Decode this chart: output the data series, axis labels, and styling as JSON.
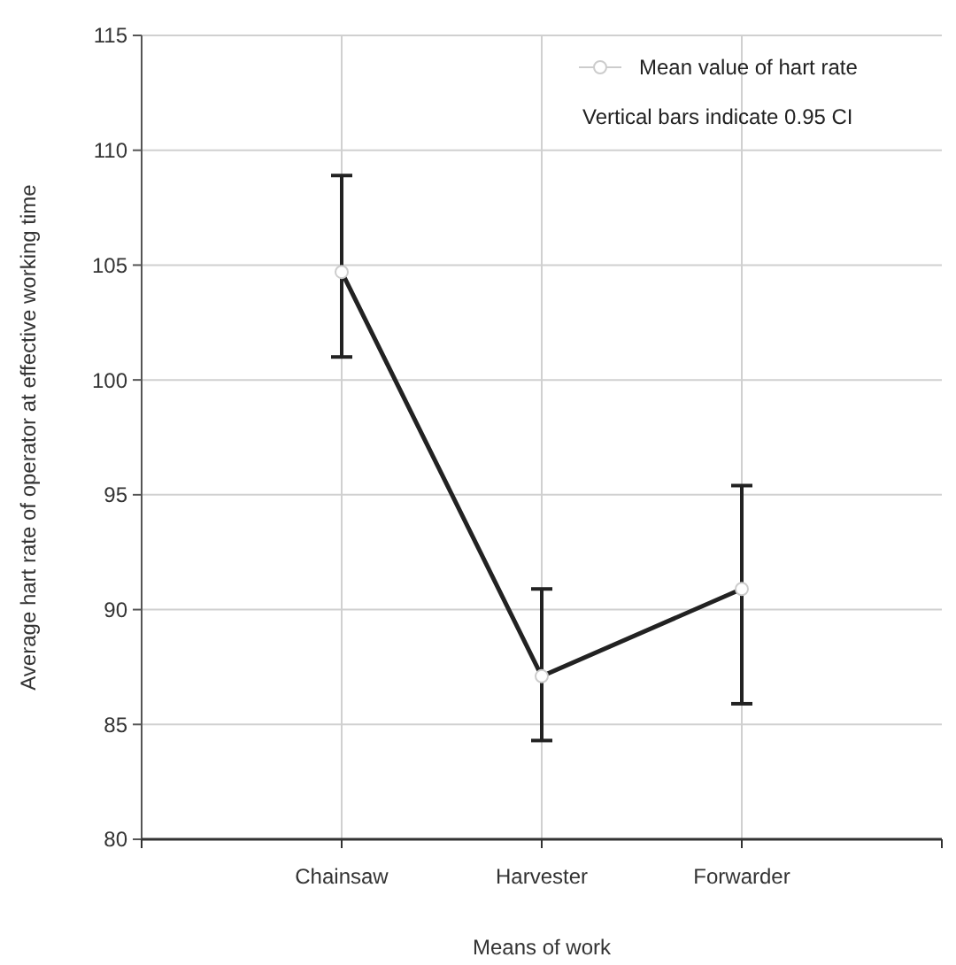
{
  "chart_data": {
    "type": "line",
    "xlabel": "Means of work",
    "ylabel": "Average hart rate of operator at effective working time",
    "categories": [
      "Chainsaw",
      "Harvester",
      "Forwarder"
    ],
    "series": [
      {
        "name": "Mean value of hart rate",
        "color": "#222222",
        "values": [
          104.7,
          87.1,
          90.9
        ],
        "errors": [
          [
            101.0,
            108.9
          ],
          [
            84.3,
            90.9
          ],
          [
            85.9,
            95.4
          ]
        ]
      }
    ],
    "ylim": [
      80,
      115
    ],
    "yticks": [
      80,
      85,
      90,
      95,
      100,
      105,
      110,
      115
    ],
    "grid": true,
    "legend": "top right",
    "marker": "circle",
    "line_style": "solid",
    "annotations": [
      "Vertical bars indicate 0.95 CI"
    ]
  }
}
